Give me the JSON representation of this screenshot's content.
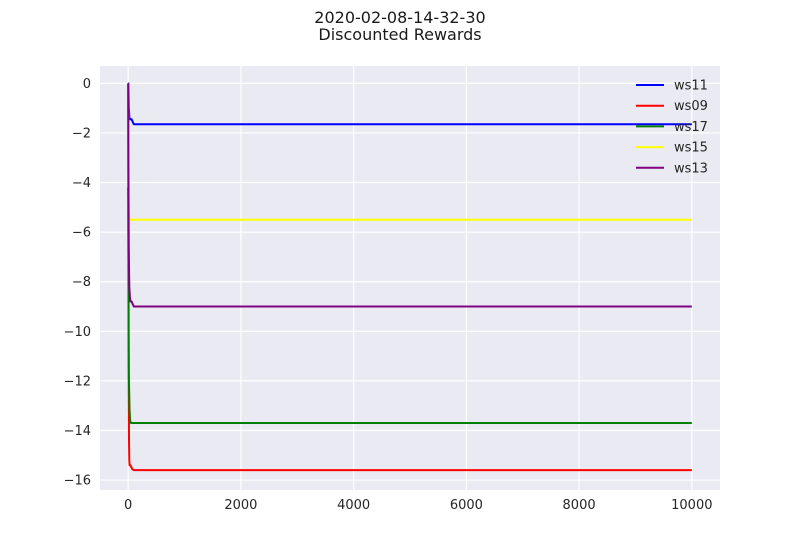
{
  "chart_data": {
    "type": "line",
    "title_lines": [
      "2020-02-08-14-32-30",
      "Discounted Rewards"
    ],
    "xlabel": "",
    "ylabel": "",
    "xlim": [
      -500,
      10500
    ],
    "ylim": [
      -16.4,
      0.7
    ],
    "x_ticks": [
      0,
      2000,
      4000,
      6000,
      8000,
      10000
    ],
    "y_ticks": [
      0,
      -2,
      -4,
      -6,
      -8,
      -10,
      -12,
      -14,
      -16
    ],
    "grid": true,
    "legend_position": "top-right",
    "series": [
      {
        "name": "ws11",
        "color": "#0000ff",
        "x": [
          0,
          5,
          8,
          12,
          20,
          30,
          60,
          100,
          150,
          10000
        ],
        "y": [
          0,
          0,
          -0.5,
          -1.0,
          -1.35,
          -1.45,
          -1.45,
          -1.65,
          -1.65,
          -1.65
        ]
      },
      {
        "name": "ws09",
        "color": "#ff0000",
        "x": [
          0,
          5,
          10,
          15,
          20,
          25,
          40,
          70,
          100,
          10000
        ],
        "y": [
          -4.2,
          -8.0,
          -12.5,
          -14.5,
          -15.2,
          -15.4,
          -15.4,
          -15.55,
          -15.6,
          -15.6
        ]
      },
      {
        "name": "ws17",
        "color": "#008000",
        "x": [
          0,
          4,
          8,
          12,
          18,
          25,
          35,
          50,
          100,
          10000
        ],
        "y": [
          0,
          -5.0,
          -10.2,
          -11.8,
          -12.5,
          -13.2,
          -13.6,
          -13.7,
          -13.7,
          -13.7
        ]
      },
      {
        "name": "ws15",
        "color": "#ffff00",
        "x": [
          0,
          4,
          8,
          12,
          18,
          25,
          40,
          100,
          10000
        ],
        "y": [
          0,
          -2.5,
          -4.5,
          -5.2,
          -5.4,
          -5.5,
          -5.5,
          -5.5,
          -5.5
        ]
      },
      {
        "name": "ws13",
        "color": "#800080",
        "x": [
          0,
          5,
          10,
          15,
          20,
          30,
          40,
          60,
          100,
          10000
        ],
        "y": [
          0,
          -4.0,
          -6.5,
          -7.5,
          -8.2,
          -8.6,
          -8.8,
          -8.8,
          -9.0,
          -9.0
        ]
      }
    ]
  }
}
